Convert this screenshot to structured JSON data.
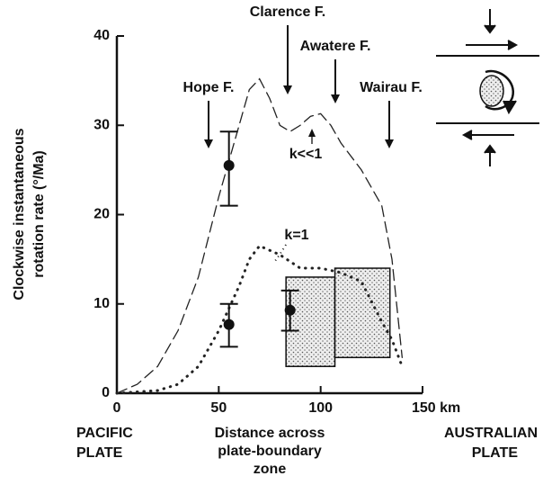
{
  "chart_data": {
    "type": "line",
    "ylabel": [
      "Clockwise instantaneous",
      "rotation rate  (°/Ma)"
    ],
    "xlabel": [
      "Distance across",
      "plate-boundary",
      "zone"
    ],
    "left_label": [
      "PACIFIC",
      "PLATE"
    ],
    "right_label": [
      "AUSTRALIAN",
      "PLATE"
    ],
    "xlim": [
      0,
      150
    ],
    "ylim": [
      0,
      40
    ],
    "xticks": [
      0,
      50,
      100,
      {
        "value": 150,
        "label": "150 km"
      }
    ],
    "yticks": [
      0,
      10,
      20,
      30,
      40
    ],
    "series": [
      {
        "name": "k<<1",
        "style": "dashed",
        "color": "#222",
        "x": [
          0,
          10,
          20,
          30,
          40,
          50,
          60,
          65,
          70,
          75,
          80,
          85,
          90,
          95,
          100,
          105,
          110,
          120,
          130,
          135,
          140
        ],
        "values": [
          0,
          1,
          3,
          7,
          13,
          22,
          30,
          34,
          35.2,
          33,
          30,
          29.3,
          30,
          31,
          31.3,
          30,
          28,
          25,
          21,
          15,
          4
        ]
      },
      {
        "name": "k=1",
        "style": "dotted",
        "color": "#222",
        "x": [
          0,
          20,
          30,
          40,
          50,
          60,
          65,
          70,
          75,
          80,
          90,
          100,
          110,
          120,
          130,
          135,
          140
        ],
        "values": [
          0,
          0.3,
          1,
          3,
          7,
          12,
          15,
          16.5,
          16,
          15.5,
          14,
          14,
          13.5,
          12.5,
          8,
          6,
          3
        ]
      }
    ],
    "points": {
      "x": [
        55,
        55,
        85
      ],
      "values": [
        25.5,
        7.7,
        9.3
      ],
      "lower": [
        21,
        5.2,
        7
      ],
      "upper": [
        29.3,
        10,
        11.5
      ]
    },
    "boxes": {
      "x0": [
        83,
        107
      ],
      "x1": [
        107,
        134
      ],
      "y0": [
        3,
        4
      ],
      "y1": [
        13,
        14
      ]
    },
    "faults": [
      "Hope F.",
      "Clarence F.",
      "Awatere F.",
      "Wairau F."
    ]
  }
}
